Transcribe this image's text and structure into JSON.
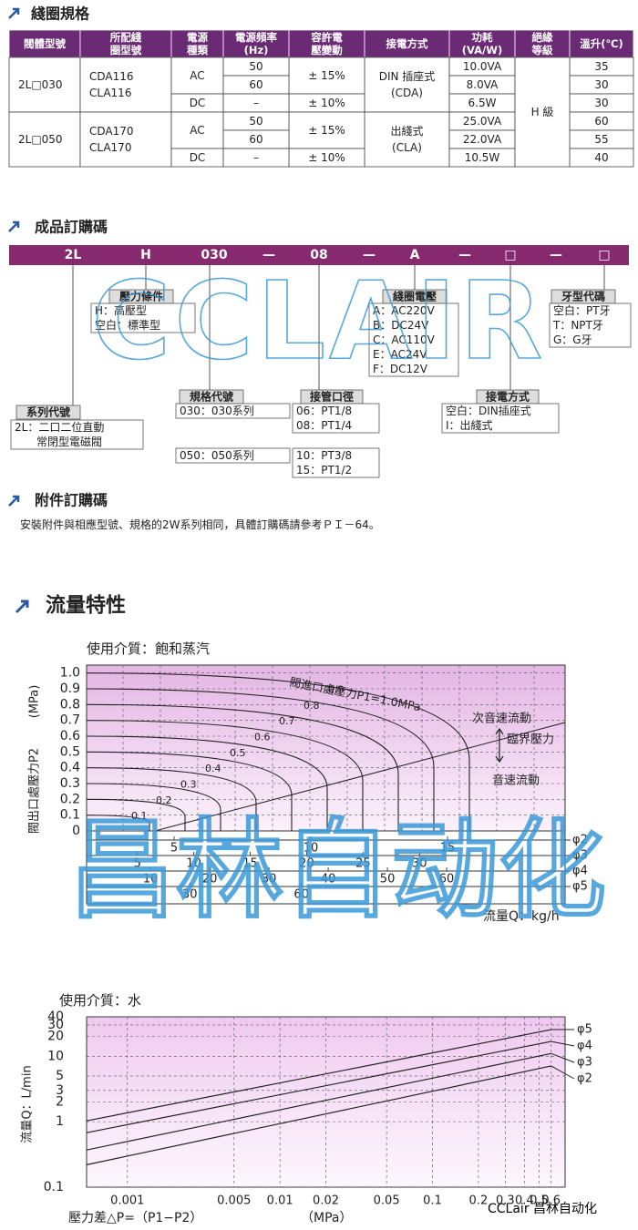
{
  "coil_spec": {
    "title": "綫圈規格",
    "header": [
      [
        "閥體型號"
      ],
      [
        "所配綫",
        "圈型號"
      ],
      [
        "電源",
        "種類"
      ],
      [
        "電源頻率",
        "(Hz)"
      ],
      [
        "容許電",
        "壓變動"
      ],
      [
        "接電方式"
      ],
      [
        "功耗",
        "(VA/W)"
      ],
      [
        "絕緣",
        "等級"
      ],
      [
        "溫升(℃)"
      ]
    ],
    "models": [
      "2L□030",
      "2L□050"
    ],
    "coils": [
      [
        "CDA116",
        "CLA116"
      ],
      [
        "CDA170",
        "CLA170"
      ]
    ],
    "supply": [
      "AC",
      "DC",
      "AC",
      "DC"
    ],
    "frequency": [
      "50",
      "60",
      "–",
      "50",
      "60",
      "–"
    ],
    "voltage_tolerance": [
      "± 15%",
      "± 10%",
      "± 15%",
      "± 10%"
    ],
    "connection": [
      [
        "DIN 插座式",
        "(CDA)"
      ],
      [
        "出綫式",
        "(CLA)"
      ]
    ],
    "power": [
      "10.0VA",
      "8.0VA",
      "6.5W",
      "25.0VA",
      "22.0VA",
      "10.5W"
    ],
    "insulation": "H 級",
    "temperature_rise": [
      "35",
      "30",
      "30",
      "60",
      "55",
      "40"
    ]
  },
  "order_code": {
    "title": "成品訂購碼",
    "code": [
      "2L",
      "H",
      "030",
      "—",
      "08",
      "—",
      "A",
      "—",
      "□",
      "—",
      "□"
    ],
    "groups": [
      {
        "title": "系列代號",
        "boxes": [
          [
            "2L：二口二位直動",
            "　　常閉型電磁閥"
          ]
        ]
      },
      {
        "title": "壓力條件",
        "boxes": [
          [
            "H：高壓型",
            "空白：標準型"
          ]
        ]
      },
      {
        "title": "規格代號",
        "boxes": [
          [
            "030：030系列"
          ],
          [
            "050：050系列"
          ]
        ]
      },
      {
        "title": "接管口徑",
        "boxes": [
          [
            "06：PT1/8",
            "08：PT1/4"
          ],
          [
            "10：PT3/8",
            "15：PT1/2"
          ]
        ]
      },
      {
        "title": "綫圈電壓",
        "boxes": [
          [
            "A：AC220V",
            "B：DC24V",
            "C：AC110V",
            "E：AC24V",
            "F：DC12V"
          ]
        ]
      },
      {
        "title": "接電方式",
        "boxes": [
          [
            "空白：DIN插座式",
            "I：出綫式"
          ]
        ]
      },
      {
        "title": "牙型代碼",
        "boxes": [
          [
            "空白：PT牙",
            "T：NPT牙",
            "G：G牙"
          ]
        ]
      }
    ]
  },
  "accessory": {
    "title": "附件訂購碼",
    "text": "安裝附件與相應型號、規格的2W系列相同，具體訂購碼請參考ＰＩ－64。"
  },
  "flow": {
    "title": "流量特性",
    "steam": {
      "type": "line",
      "medium": "使用介質：飽和蒸汽",
      "ylabel": "閥出口處壓力P2",
      "yunit": "(MPa)",
      "ylim": [
        0,
        1.05
      ],
      "yticks": [
        0,
        0.1,
        0.2,
        0.3,
        0.4,
        0.5,
        0.6,
        0.7,
        0.8,
        0.9,
        {
          "value": 1,
          "label": "1.0"
        }
      ],
      "curves": {
        "p1": [
          0.1,
          0.2,
          0.3,
          0.4,
          0.5,
          0.6,
          0.7,
          0.8,
          0.9,
          1
        ],
        "p1_label": "閥進口處壓力P1=1.0MPa"
      },
      "annotations": [
        "次音速流動",
        "臨界壓力",
        "音速流動"
      ],
      "flow_scales": [
        {
          "name": "φ2",
          "xlim": [
            1.8,
            19.3
          ],
          "xticks": [
            5,
            10,
            15
          ]
        },
        {
          "name": "φ3",
          "xlim": [
            0.5,
            42.9
          ],
          "xticks": [
            5,
            10,
            15,
            20,
            25,
            30
          ]
        },
        {
          "name": "φ4",
          "xlim": [
            -0.8,
            80
          ],
          "xticks": [
            10,
            20,
            30,
            40,
            50,
            60
          ]
        },
        {
          "name": "φ5",
          "xlim": [
            2.2,
            131
          ],
          "xticks": [
            30,
            60
          ]
        }
      ],
      "xlabel": "流量Q：kg/h"
    },
    "water": {
      "type": "line",
      "medium": "使用介質：水",
      "ylabel": "流量Q：L/min",
      "log_x": true,
      "log_y": true,
      "ylim": [
        0.1,
        40
      ],
      "yticks": [
        0.1,
        1,
        2,
        3,
        5,
        10,
        20,
        30,
        40
      ],
      "xlim": [
        0.00054,
        0.74
      ],
      "xticks": [
        0.001,
        0.005,
        0.01,
        0.02,
        0.05,
        0.1,
        0.2,
        0.3,
        0.4,
        0.5,
        0.6
      ],
      "x": [
        0.00054,
        0.6
      ],
      "series": [
        {
          "name": "φ5",
          "values": [
            1.03,
            25.5
          ]
        },
        {
          "name": "φ4",
          "values": [
            0.68,
            16.8
          ]
        },
        {
          "name": "φ3",
          "values": [
            0.37,
            11
          ]
        },
        {
          "name": "φ2",
          "values": [
            0.22,
            7.1
          ]
        }
      ],
      "xlabel": "壓力差△P=（P1−P2）",
      "xunit": "（MPa）"
    }
  },
  "watermark": {
    "logo": "CCLAIR",
    "brand": "昌林自动化",
    "footer": "CCLair 昌林自动化"
  }
}
